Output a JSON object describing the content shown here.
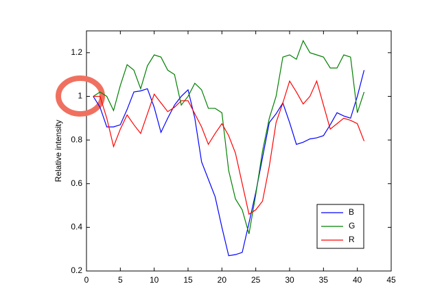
{
  "chart_data": {
    "type": "line",
    "y_label": "Relative  intensity",
    "x": [
      1,
      2,
      3,
      4,
      5,
      6,
      7,
      8,
      9,
      10,
      11,
      12,
      13,
      14,
      15,
      16,
      17,
      18,
      19,
      20,
      21,
      22,
      23,
      24,
      25,
      26,
      27,
      28,
      29,
      30,
      31,
      32,
      33,
      34,
      35,
      36,
      37,
      38,
      39,
      40,
      41
    ],
    "series": [
      {
        "name": "B",
        "color": "#0000ff",
        "values": [
          1.0,
          0.95,
          0.86,
          0.86,
          0.87,
          0.94,
          1.02,
          1.025,
          1.035,
          0.95,
          0.835,
          0.9,
          0.96,
          1.0,
          1.03,
          0.9,
          0.7,
          0.62,
          0.54,
          0.4,
          0.27,
          0.275,
          0.285,
          0.42,
          0.56,
          0.72,
          0.88,
          0.92,
          0.97,
          0.88,
          0.78,
          0.79,
          0.805,
          0.81,
          0.82,
          0.87,
          0.925,
          0.91,
          0.9,
          1.0,
          1.12
        ]
      },
      {
        "name": "G",
        "color": "#008000",
        "values": [
          1.0,
          1.02,
          1.0,
          0.935,
          1.05,
          1.145,
          1.12,
          1.035,
          1.14,
          1.19,
          1.18,
          1.12,
          1.1,
          0.96,
          1.0,
          1.06,
          1.03,
          0.945,
          0.945,
          0.925,
          0.66,
          0.53,
          0.48,
          0.37,
          0.55,
          0.75,
          0.9,
          1.0,
          1.18,
          1.19,
          1.17,
          1.255,
          1.2,
          1.19,
          1.18,
          1.13,
          1.13,
          1.19,
          1.18,
          0.925,
          1.02
        ]
      },
      {
        "name": "R",
        "color": "#ff0000",
        "values": [
          1.0,
          1.0,
          0.9,
          0.77,
          0.85,
          0.915,
          0.87,
          0.83,
          0.92,
          1.01,
          0.97,
          0.93,
          0.95,
          0.98,
          0.98,
          0.92,
          0.86,
          0.78,
          0.83,
          0.875,
          0.82,
          0.74,
          0.6,
          0.46,
          0.48,
          0.52,
          0.68,
          0.88,
          0.97,
          1.07,
          1.02,
          0.965,
          1.0,
          1.07,
          0.96,
          0.85,
          0.875,
          0.9,
          0.89,
          0.875,
          0.795
        ]
      }
    ],
    "xlim": [
      0,
      45
    ],
    "xticks": [
      0,
      5,
      10,
      15,
      20,
      25,
      30,
      35,
      40,
      45
    ],
    "ylim": [
      0.2,
      1.3
    ],
    "yticks": [
      0.2,
      0.4,
      0.6,
      0.8,
      1,
      1.2
    ],
    "legend": "southeast"
  }
}
